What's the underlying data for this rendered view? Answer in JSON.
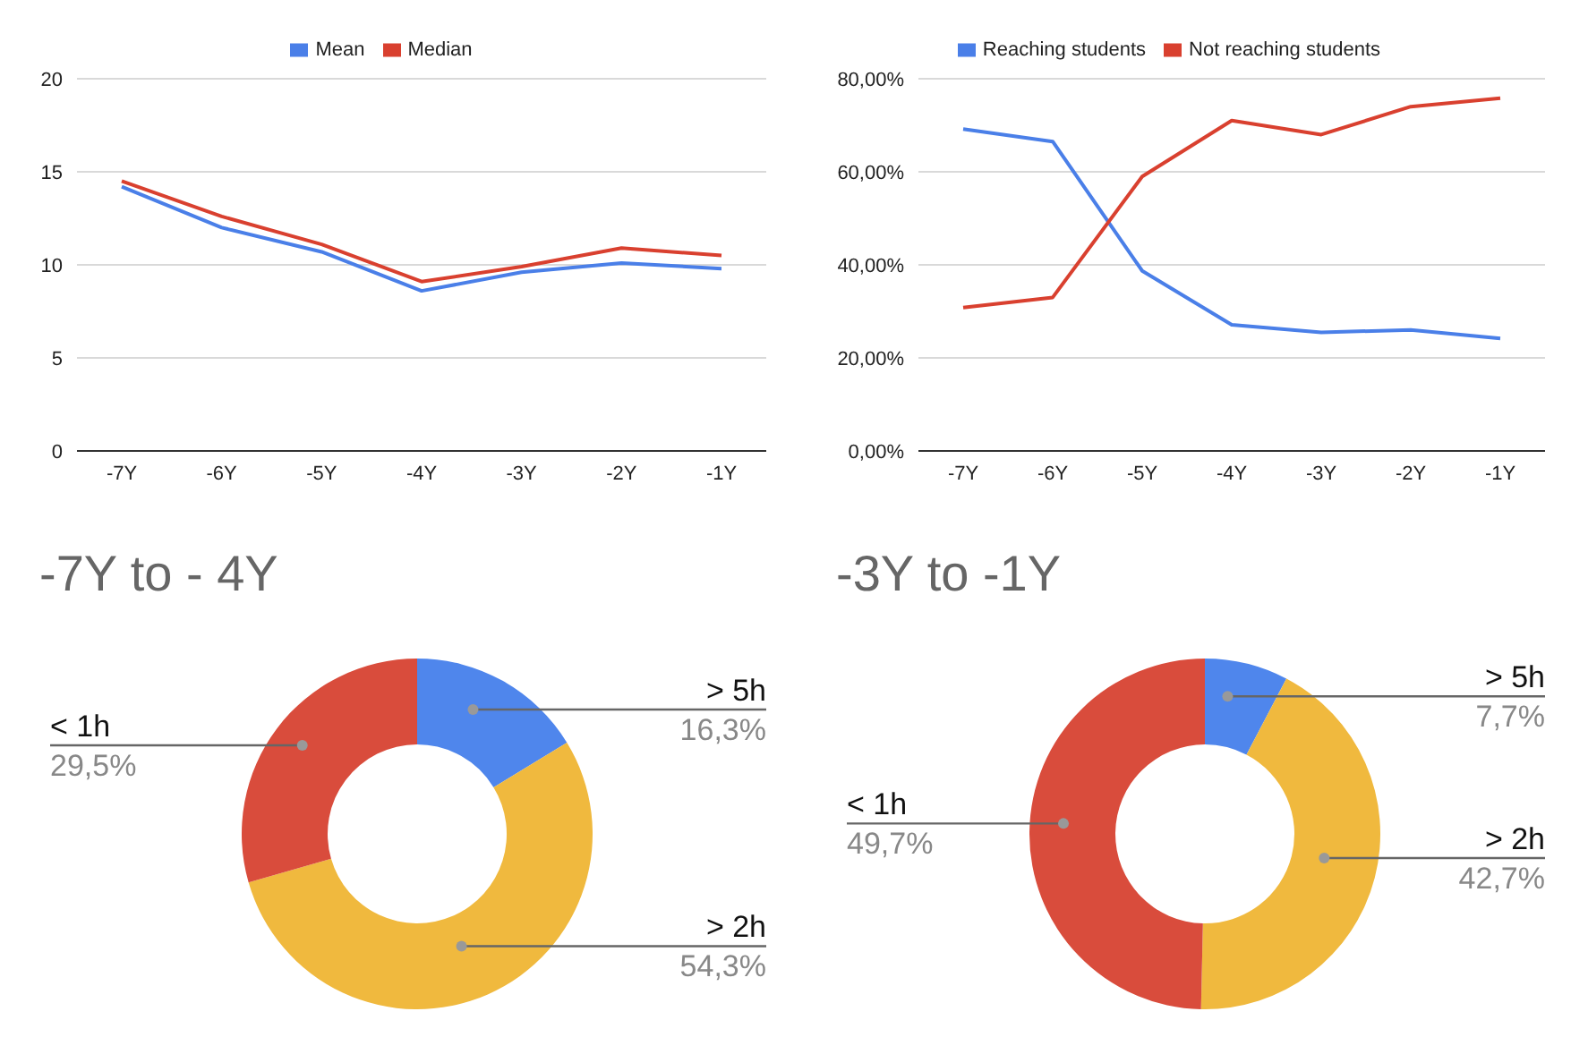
{
  "chart_data": [
    {
      "type": "line",
      "categories": [
        "-7Y",
        "-6Y",
        "-5Y",
        "-4Y",
        "-3Y",
        "-2Y",
        "-1Y"
      ],
      "series": [
        {
          "name": "Mean",
          "color": "#4a7fe8",
          "values": [
            14.2,
            12.0,
            10.7,
            8.6,
            9.6,
            10.1,
            9.8
          ]
        },
        {
          "name": "Median",
          "color": "#d9402f",
          "values": [
            14.5,
            12.6,
            11.1,
            9.1,
            9.9,
            10.9,
            10.5
          ]
        }
      ],
      "ylim": [
        0,
        20
      ],
      "yticks": [
        0,
        5,
        10,
        15,
        20
      ],
      "grid": "y",
      "legend": "top",
      "marker": "none",
      "line_style": "solid"
    },
    {
      "type": "line",
      "categories": [
        "-7Y",
        "-6Y",
        "-5Y",
        "-4Y",
        "-3Y",
        "-2Y",
        "-1Y"
      ],
      "series": [
        {
          "name": "Reaching students",
          "color": "#4a7fe8",
          "values": [
            69.2,
            66.5,
            38.7,
            27.1,
            25.5,
            26.0,
            24.2
          ]
        },
        {
          "name": "Not reaching students",
          "color": "#d9402f",
          "values": [
            30.8,
            33.0,
            59.0,
            71.0,
            68.0,
            74.0,
            75.8
          ]
        }
      ],
      "ylim": [
        0,
        80
      ],
      "yticks": [
        {
          "value": 0,
          "label": "0,00%"
        },
        {
          "value": 20,
          "label": "20,00%"
        },
        {
          "value": 40,
          "label": "40,00%"
        },
        {
          "value": 60,
          "label": "60,00%"
        },
        {
          "value": 80,
          "label": "80,00%"
        }
      ],
      "grid": "y",
      "legend": "top",
      "marker": "none",
      "line_style": "solid"
    },
    {
      "type": "donut",
      "title": "-7Y to - 4Y",
      "categories": [
        "> 5h",
        "> 2h",
        "< 1h"
      ],
      "values": [
        16.3,
        54.3,
        29.5
      ],
      "colors": [
        "#4f86ec",
        "#f0b93e",
        "#d94c3c"
      ],
      "value_labels": [
        "16,3%",
        "54,3%",
        "29,5%"
      ]
    },
    {
      "type": "donut",
      "title": "-3Y to -1Y",
      "categories": [
        "> 5h",
        "> 2h",
        "< 1h"
      ],
      "values": [
        7.7,
        42.7,
        49.7
      ],
      "colors": [
        "#4f86ec",
        "#f0b93e",
        "#d94c3c"
      ],
      "value_labels": [
        "7,7%",
        "42,7%",
        "49,7%"
      ]
    }
  ]
}
